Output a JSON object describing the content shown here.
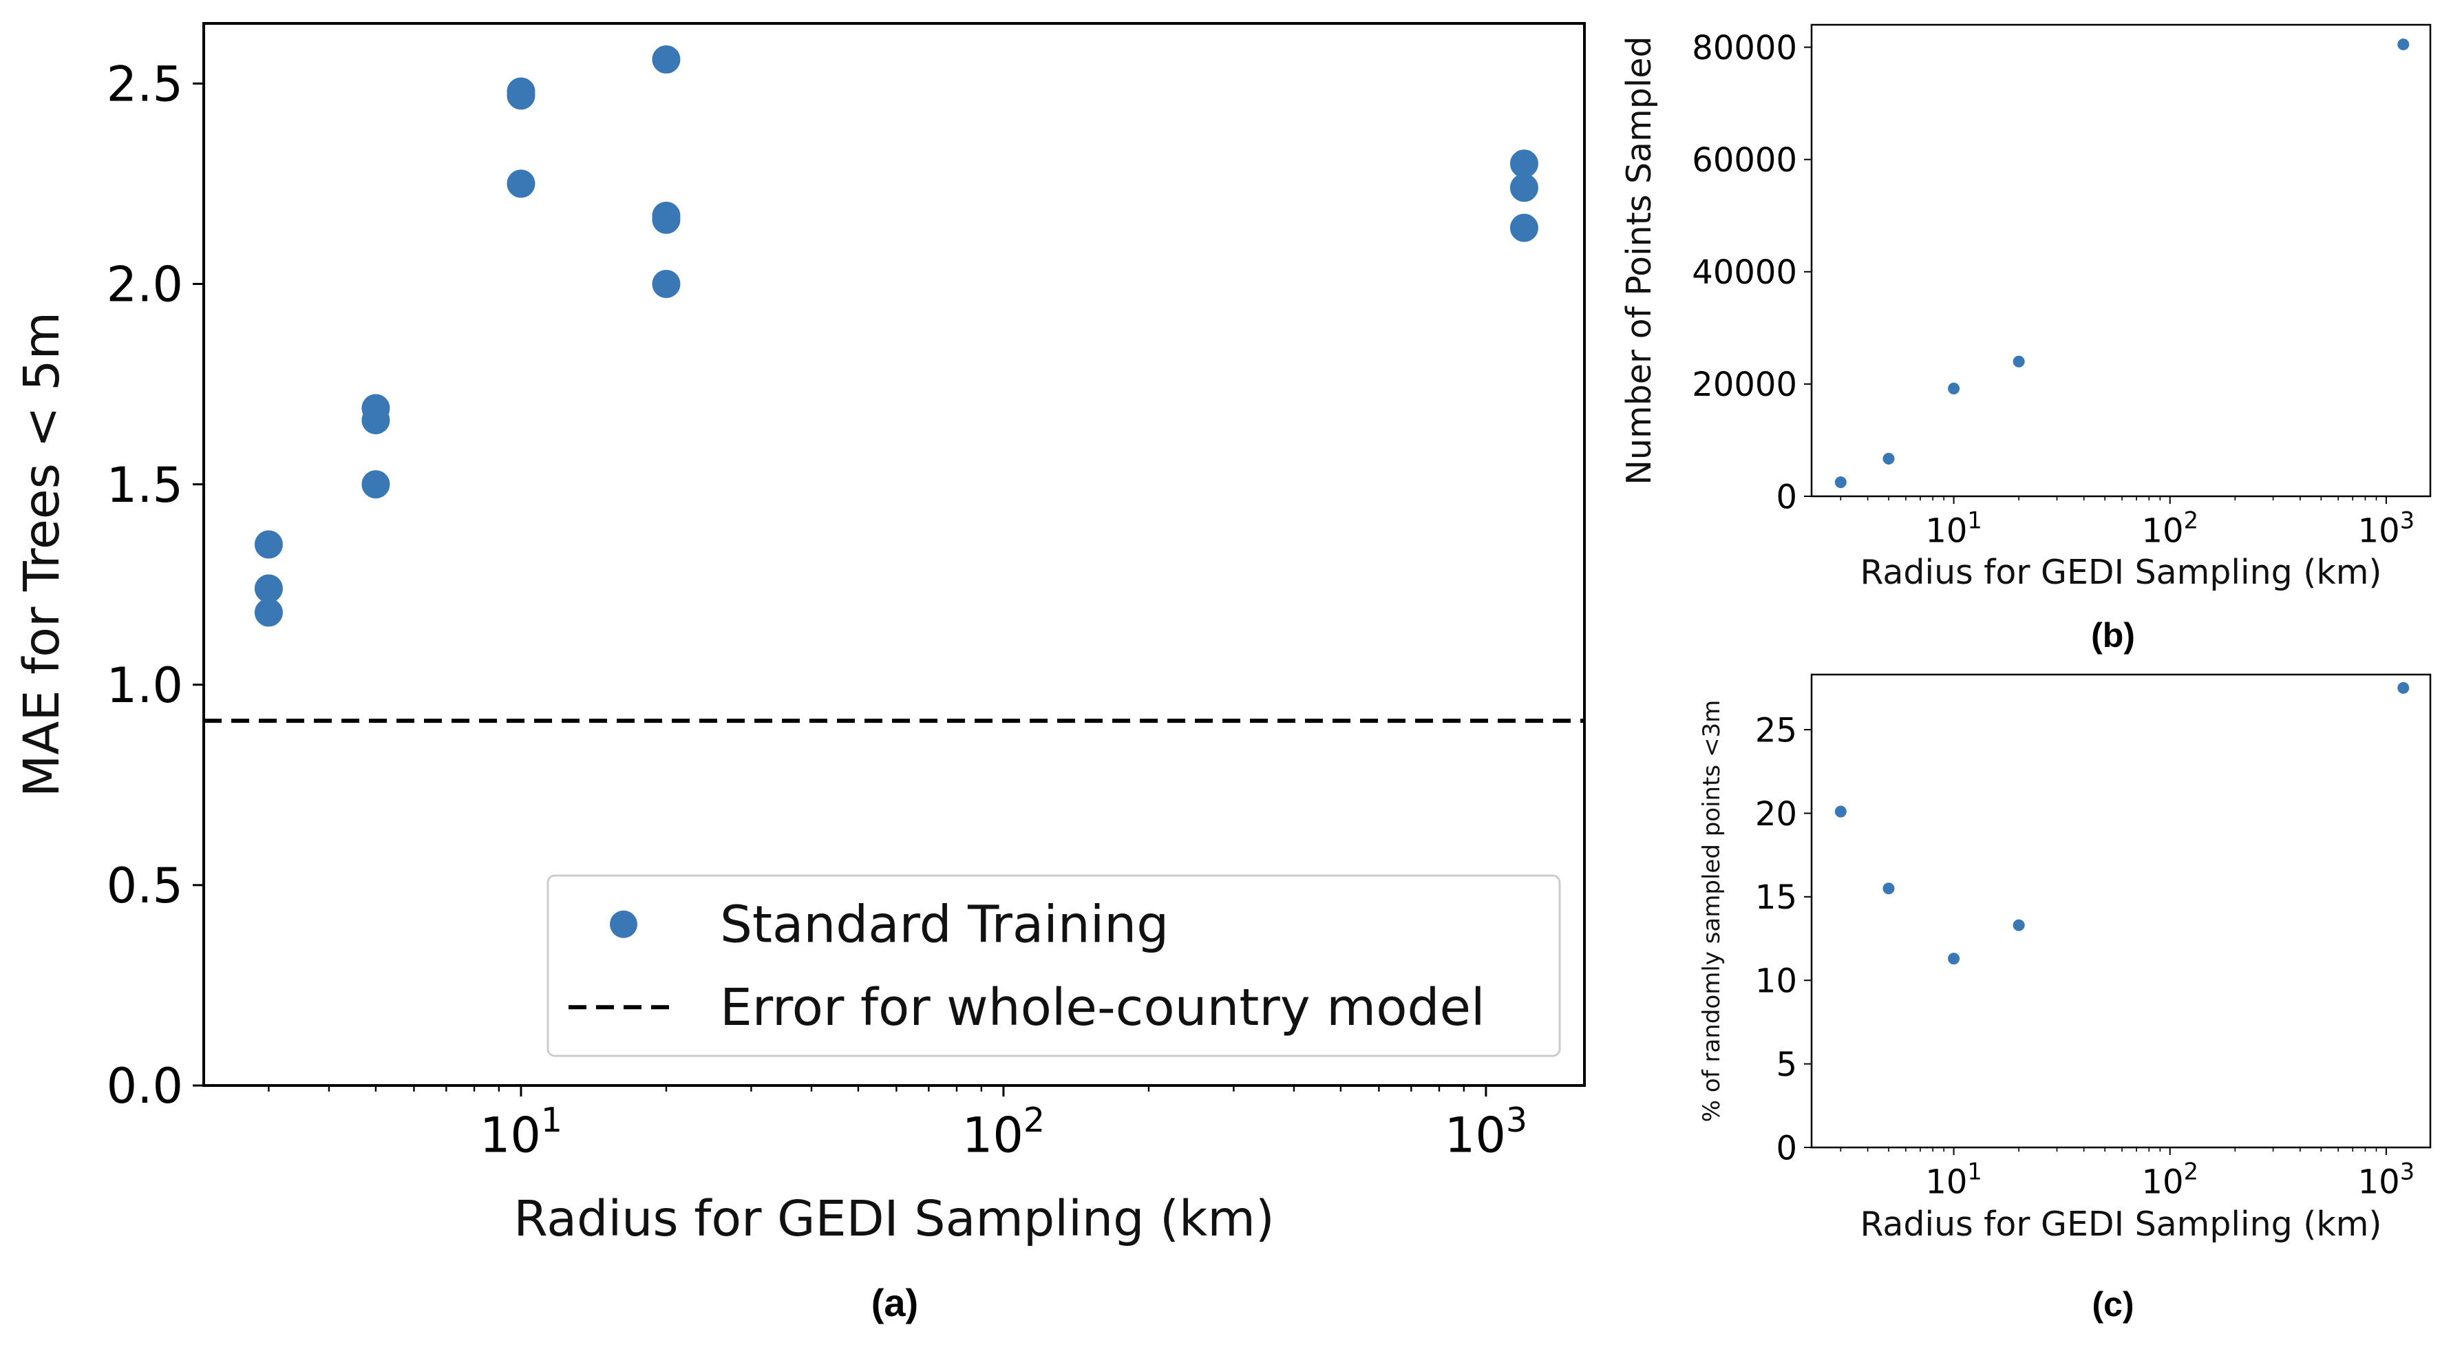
{
  "chart_data": [
    {
      "type": "scatter",
      "panel_label": "(a)",
      "xlabel": "Radius for GEDI Sampling (km)",
      "ylabel": "MAE for Trees < 5m",
      "x_scale": "log",
      "xlim": [
        2.2,
        1600
      ],
      "ylim": [
        0,
        2.65
      ],
      "x_ticks": [
        {
          "value": 10,
          "base": "10",
          "exp": "1"
        },
        {
          "value": 100,
          "base": "10",
          "exp": "2"
        },
        {
          "value": 1000,
          "base": "10",
          "exp": "3"
        }
      ],
      "y_ticks": [
        "0.0",
        "0.5",
        "1.0",
        "1.5",
        "2.0",
        "2.5"
      ],
      "series": [
        {
          "name": "Standard Training",
          "color": "#3a78b5",
          "points": [
            {
              "x": 3,
              "y": 1.35
            },
            {
              "x": 3,
              "y": 1.24
            },
            {
              "x": 3,
              "y": 1.18
            },
            {
              "x": 5,
              "y": 1.69
            },
            {
              "x": 5,
              "y": 1.66
            },
            {
              "x": 5,
              "y": 1.5
            },
            {
              "x": 10,
              "y": 2.48
            },
            {
              "x": 10,
              "y": 2.47
            },
            {
              "x": 10,
              "y": 2.25
            },
            {
              "x": 20,
              "y": 2.56
            },
            {
              "x": 20,
              "y": 2.17
            },
            {
              "x": 20,
              "y": 2.16
            },
            {
              "x": 20,
              "y": 2.0
            },
            {
              "x": 1200,
              "y": 2.3
            },
            {
              "x": 1200,
              "y": 2.24
            },
            {
              "x": 1200,
              "y": 2.14
            }
          ]
        }
      ],
      "reference_line": {
        "name": "Error for whole-country model",
        "y": 0.91,
        "style": "dashed",
        "color": "#000000"
      },
      "legend": {
        "placement": "lower-right",
        "entries": [
          "Standard Training",
          "Error for whole-country model"
        ]
      }
    },
    {
      "type": "scatter",
      "panel_label": "(b)",
      "xlabel": "Radius for GEDI Sampling (km)",
      "ylabel": "Number of Points Sampled",
      "x_scale": "log",
      "xlim": [
        2.2,
        1600
      ],
      "ylim": [
        0,
        84000
      ],
      "x_ticks": [
        {
          "value": 10,
          "base": "10",
          "exp": "1"
        },
        {
          "value": 100,
          "base": "10",
          "exp": "2"
        },
        {
          "value": 1000,
          "base": "10",
          "exp": "3"
        }
      ],
      "y_ticks": [
        "0",
        "20000",
        "40000",
        "60000",
        "80000"
      ],
      "series": [
        {
          "color": "#3a78b5",
          "points": [
            {
              "x": 3,
              "y": 2500
            },
            {
              "x": 5,
              "y": 6700
            },
            {
              "x": 10,
              "y": 19200
            },
            {
              "x": 20,
              "y": 24000
            },
            {
              "x": 1200,
              "y": 80500
            }
          ]
        }
      ]
    },
    {
      "type": "scatter",
      "panel_label": "(c)",
      "xlabel": "Radius for GEDI Sampling (km)",
      "ylabel": "% of randomly sampled points <3m",
      "x_scale": "log",
      "xlim": [
        2.2,
        1600
      ],
      "ylim": [
        0,
        28.3
      ],
      "x_ticks": [
        {
          "value": 10,
          "base": "10",
          "exp": "1"
        },
        {
          "value": 100,
          "base": "10",
          "exp": "2"
        },
        {
          "value": 1000,
          "base": "10",
          "exp": "3"
        }
      ],
      "y_ticks": [
        "0",
        "5",
        "10",
        "15",
        "20",
        "25"
      ],
      "series": [
        {
          "color": "#3a78b5",
          "points": [
            {
              "x": 3,
              "y": 20.1
            },
            {
              "x": 5,
              "y": 15.5
            },
            {
              "x": 10,
              "y": 11.3
            },
            {
              "x": 20,
              "y": 13.3
            },
            {
              "x": 1200,
              "y": 27.5
            }
          ]
        }
      ]
    }
  ]
}
